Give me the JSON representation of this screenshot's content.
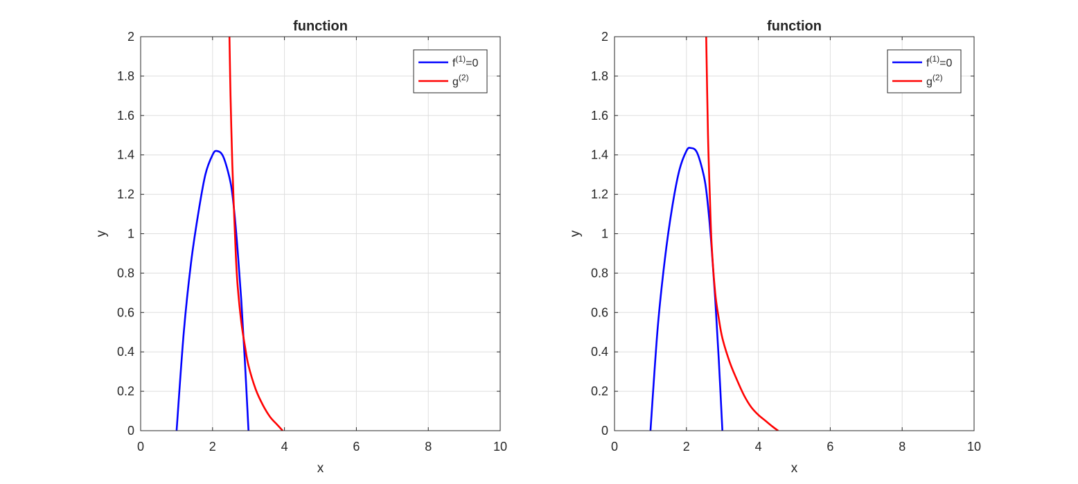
{
  "chart_data": [
    {
      "type": "line",
      "title": "function",
      "xlabel": "x",
      "ylabel": "y",
      "xlim": [
        0,
        10
      ],
      "ylim": [
        0,
        2
      ],
      "xticks": [
        "0",
        "2",
        "4",
        "6",
        "8",
        "10"
      ],
      "yticks": [
        "0",
        "0.2",
        "0.4",
        "0.6",
        "0.8",
        "1",
        "1.2",
        "1.4",
        "1.6",
        "1.8",
        "2"
      ],
      "grid": true,
      "legend_position": "top-right",
      "series": [
        {
          "name": "f(1)=0",
          "label_base": "f",
          "label_sup": "(1)",
          "label_rest": "=0",
          "color": "#0000ff",
          "points": [
            [
              1.0,
              0.0
            ],
            [
              1.2,
              0.5
            ],
            [
              1.4,
              0.85
            ],
            [
              1.6,
              1.1
            ],
            [
              1.8,
              1.3
            ],
            [
              2.0,
              1.4
            ],
            [
              2.12,
              1.42
            ],
            [
              2.3,
              1.39
            ],
            [
              2.5,
              1.26
            ],
            [
              2.6,
              1.12
            ],
            [
              2.7,
              0.91
            ],
            [
              2.8,
              0.66
            ],
            [
              2.9,
              0.35
            ],
            [
              3.0,
              0.0
            ]
          ]
        },
        {
          "name": "g(2)",
          "label_base": "g",
          "label_sup": "(2)",
          "label_rest": "",
          "color": "#ff0000",
          "points": [
            [
              2.47,
              2.0
            ],
            [
              2.5,
              1.7
            ],
            [
              2.55,
              1.35
            ],
            [
              2.6,
              1.1
            ],
            [
              2.65,
              0.88
            ],
            [
              2.7,
              0.73
            ],
            [
              2.8,
              0.55
            ],
            [
              2.9,
              0.43
            ],
            [
              3.0,
              0.33
            ],
            [
              3.2,
              0.21
            ],
            [
              3.4,
              0.13
            ],
            [
              3.6,
              0.07
            ],
            [
              3.8,
              0.03
            ],
            [
              3.95,
              0.0
            ]
          ]
        }
      ]
    },
    {
      "type": "line",
      "title": "function",
      "xlabel": "x",
      "ylabel": "y",
      "xlim": [
        0,
        10
      ],
      "ylim": [
        0,
        2
      ],
      "xticks": [
        "0",
        "2",
        "4",
        "6",
        "8",
        "10"
      ],
      "yticks": [
        "0",
        "0.2",
        "0.4",
        "0.6",
        "0.8",
        "1",
        "1.2",
        "1.4",
        "1.6",
        "1.8",
        "2"
      ],
      "grid": true,
      "legend_position": "top-right",
      "series": [
        {
          "name": "f(1)=0",
          "label_base": "f",
          "label_sup": "(1)",
          "label_rest": "=0",
          "color": "#0000ff",
          "points": [
            [
              1.0,
              0.0
            ],
            [
              1.2,
              0.52
            ],
            [
              1.4,
              0.87
            ],
            [
              1.6,
              1.13
            ],
            [
              1.8,
              1.32
            ],
            [
              2.0,
              1.42
            ],
            [
              2.12,
              1.435
            ],
            [
              2.3,
              1.41
            ],
            [
              2.5,
              1.28
            ],
            [
              2.6,
              1.14
            ],
            [
              2.7,
              0.93
            ],
            [
              2.8,
              0.67
            ],
            [
              2.9,
              0.36
            ],
            [
              3.0,
              0.0
            ]
          ]
        },
        {
          "name": "g(2)",
          "label_base": "g",
          "label_sup": "(2)",
          "label_rest": "",
          "color": "#ff0000",
          "points": [
            [
              2.55,
              2.0
            ],
            [
              2.6,
              1.5
            ],
            [
              2.65,
              1.2
            ],
            [
              2.7,
              0.95
            ],
            [
              2.8,
              0.7
            ],
            [
              2.9,
              0.57
            ],
            [
              3.0,
              0.47
            ],
            [
              3.2,
              0.35
            ],
            [
              3.4,
              0.26
            ],
            [
              3.6,
              0.18
            ],
            [
              3.8,
              0.12
            ],
            [
              4.0,
              0.08
            ],
            [
              4.2,
              0.05
            ],
            [
              4.4,
              0.02
            ],
            [
              4.55,
              0.0
            ]
          ]
        }
      ]
    }
  ]
}
